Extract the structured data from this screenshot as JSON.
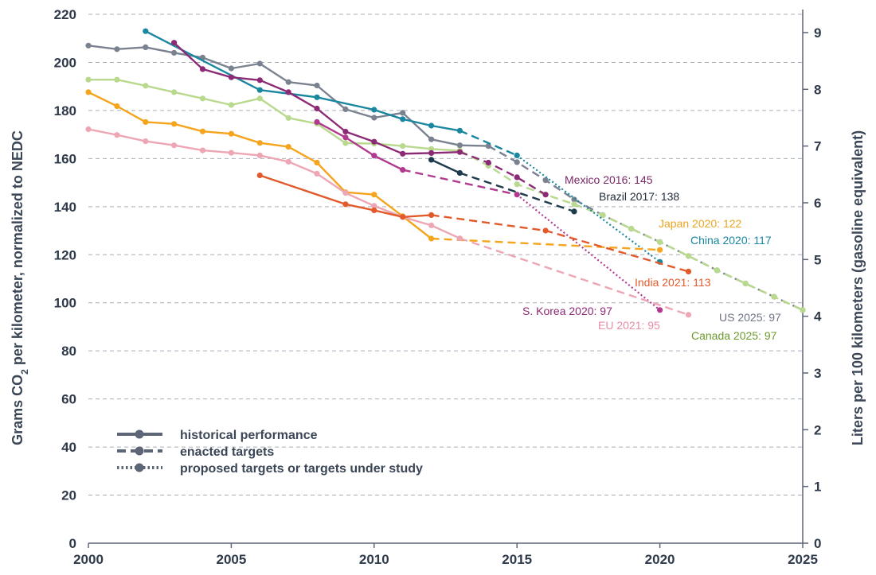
{
  "chart_data": {
    "type": "line",
    "x_axis": {
      "min": 2000,
      "max": 2025,
      "ticks": [
        2000,
        2005,
        2010,
        2015,
        2020,
        2025
      ]
    },
    "y_axis_left": {
      "label_pre": "Grams CO",
      "label_sub": "2",
      "label_post": " per kilometer, normalized to NEDC",
      "min": 0,
      "max": 220,
      "ticks": [
        0,
        20,
        40,
        60,
        80,
        100,
        120,
        140,
        160,
        180,
        200,
        220
      ]
    },
    "y_axis_right": {
      "label": "Liters per 100 kilometers (gasoline equivalent)",
      "ticks": [
        "0",
        "1",
        "2",
        "3",
        "4",
        "5",
        "6",
        "7",
        "8",
        "9"
      ],
      "grams_per_liter": 23.6
    },
    "grid": true,
    "legend": {
      "placement": "bottom-left",
      "entries": [
        {
          "style": "solid",
          "label": "historical performance"
        },
        {
          "style": "dashed",
          "label": "enacted targets"
        },
        {
          "style": "dotted",
          "label": "proposed targets or targets under study"
        }
      ]
    },
    "series": [
      {
        "name": "US",
        "color": "#7a8290",
        "historical": [
          [
            2000,
            207
          ],
          [
            2001,
            205.5
          ],
          [
            2002,
            206.3
          ],
          [
            2003,
            204
          ],
          [
            2004,
            202
          ],
          [
            2005,
            197.5
          ],
          [
            2006,
            199.5
          ],
          [
            2007,
            191.8
          ],
          [
            2008,
            190.4
          ],
          [
            2009,
            180.5
          ],
          [
            2010,
            177
          ],
          [
            2011,
            179
          ],
          [
            2012,
            168
          ],
          [
            2013,
            165.5
          ],
          [
            2014,
            165.2
          ]
        ],
        "enacted": [
          [
            2014,
            165.2
          ],
          [
            2015,
            158.5
          ],
          [
            2016,
            151
          ],
          [
            2017,
            143
          ],
          [
            2018,
            136.5
          ],
          [
            2019,
            130.8
          ],
          [
            2020,
            125.3
          ],
          [
            2021,
            119.5
          ],
          [
            2022,
            113.5
          ],
          [
            2023,
            108
          ],
          [
            2024,
            102.5
          ],
          [
            2025,
            97
          ]
        ],
        "proposed": [],
        "label": "US 2025: 97",
        "label_color": "#6c7482"
      },
      {
        "name": "Canada",
        "color": "#b8d98e",
        "historical": [
          [
            2000,
            192.8
          ],
          [
            2001,
            192.8
          ],
          [
            2002,
            190.3
          ],
          [
            2003,
            187.6
          ],
          [
            2004,
            185
          ],
          [
            2005,
            182.3
          ],
          [
            2006,
            185
          ],
          [
            2007,
            176.9
          ],
          [
            2008,
            174.5
          ],
          [
            2009,
            166.4
          ],
          [
            2010,
            166.2
          ],
          [
            2011,
            165.2
          ],
          [
            2012,
            164
          ],
          [
            2013,
            163.3
          ]
        ],
        "enacted": [
          [
            2013,
            163.3
          ],
          [
            2014,
            157
          ],
          [
            2015,
            149.3
          ],
          [
            2016,
            145
          ],
          [
            2017,
            141
          ],
          [
            2018,
            136.5
          ],
          [
            2019,
            130.8
          ],
          [
            2020,
            125.3
          ],
          [
            2021,
            119.5
          ],
          [
            2022,
            113.5
          ],
          [
            2023,
            108
          ],
          [
            2024,
            102.5
          ],
          [
            2025,
            97
          ]
        ],
        "proposed": [],
        "label": "Canada 2025: 97",
        "label_color": "#6d9a2d"
      },
      {
        "name": "China",
        "color": "#1a87a0",
        "historical": [
          [
            2002,
            213
          ],
          [
            2006,
            188.5
          ],
          [
            2008,
            185.5
          ],
          [
            2010,
            180.3
          ],
          [
            2011,
            176.4
          ],
          [
            2012,
            173.7
          ],
          [
            2013,
            171.6
          ]
        ],
        "enacted": [
          [
            2013,
            171.6
          ],
          [
            2015,
            161.3
          ]
        ],
        "proposed": [
          [
            2015,
            161.3
          ],
          [
            2020,
            117
          ]
        ],
        "label": "China 2020: 117",
        "label_color": "#1a87a0"
      },
      {
        "name": "Mexico",
        "color": "#8c2a75",
        "historical": [
          [
            2003,
            208.2
          ],
          [
            2004,
            197.2
          ],
          [
            2005,
            193.8
          ],
          [
            2006,
            192.6
          ],
          [
            2007,
            187.6
          ],
          [
            2008,
            180.8
          ],
          [
            2009,
            171.2
          ],
          [
            2010,
            167
          ],
          [
            2011,
            162
          ],
          [
            2012,
            162.3
          ],
          [
            2013,
            162.7
          ]
        ],
        "enacted": [
          [
            2013,
            162.7
          ],
          [
            2014,
            158.3
          ],
          [
            2015,
            152.2
          ],
          [
            2016,
            145
          ]
        ],
        "proposed": [],
        "label": "Mexico 2016: 145",
        "label_color": "#7b2868"
      },
      {
        "name": "S. Korea",
        "color": "#b23a8e",
        "historical": [
          [
            2008,
            175.2
          ],
          [
            2009,
            168.8
          ],
          [
            2010,
            161.2
          ],
          [
            2011,
            155.3
          ]
        ],
        "enacted": [
          [
            2011,
            155.3
          ],
          [
            2015,
            145
          ]
        ],
        "proposed": [
          [
            2015,
            145
          ],
          [
            2020,
            97
          ]
        ],
        "label": "S. Korea 2020: 97",
        "label_color": "#8c2a75"
      },
      {
        "name": "Brazil",
        "color": "#1e3b4d",
        "historical": [
          [
            2012,
            159.5
          ],
          [
            2013,
            154
          ]
        ],
        "enacted": [
          [
            2013,
            154
          ],
          [
            2017,
            138
          ]
        ],
        "proposed": [],
        "label": "Brazil 2017: 138",
        "label_color": "#1e2a38"
      },
      {
        "name": "Japan",
        "color": "#f4a51d",
        "historical": [
          [
            2000,
            187.6
          ],
          [
            2001,
            181.8
          ],
          [
            2002,
            175.2
          ],
          [
            2003,
            174.4
          ],
          [
            2004,
            171.3
          ],
          [
            2005,
            170.3
          ],
          [
            2006,
            166.5
          ],
          [
            2007,
            164.9
          ],
          [
            2008,
            158.3
          ],
          [
            2009,
            146
          ],
          [
            2010,
            145
          ],
          [
            2011,
            136
          ],
          [
            2012,
            126.7
          ]
        ],
        "enacted": [
          [
            2012,
            126.7
          ],
          [
            2020,
            122
          ]
        ],
        "proposed": [],
        "label": "Japan 2020: 122",
        "label_color": "#e9a520"
      },
      {
        "name": "EU",
        "color": "#eda6b4",
        "historical": [
          [
            2000,
            172.2
          ],
          [
            2001,
            169.8
          ],
          [
            2002,
            167.2
          ],
          [
            2003,
            165.5
          ],
          [
            2004,
            163.4
          ],
          [
            2005,
            162.4
          ],
          [
            2006,
            161.3
          ],
          [
            2007,
            158.7
          ],
          [
            2008,
            153.7
          ],
          [
            2009,
            145.7
          ],
          [
            2010,
            140.3
          ],
          [
            2011,
            135.7
          ],
          [
            2012,
            132.2
          ],
          [
            2013,
            126.8
          ]
        ],
        "enacted": [
          [
            2013,
            126.8
          ],
          [
            2021,
            95
          ]
        ],
        "proposed": [],
        "label": "EU 2021: 95",
        "label_color": "#e88da3"
      },
      {
        "name": "India",
        "color": "#e25a2b",
        "historical": [
          [
            2006,
            153
          ],
          [
            2009,
            141
          ],
          [
            2010,
            138.5
          ],
          [
            2011,
            135.7
          ],
          [
            2012,
            136.5
          ]
        ],
        "enacted": [
          [
            2012,
            136.5
          ],
          [
            2016,
            130
          ],
          [
            2021,
            113
          ]
        ],
        "proposed": [],
        "label": "India 2021: 113",
        "label_color": "#e25a2b"
      }
    ]
  }
}
